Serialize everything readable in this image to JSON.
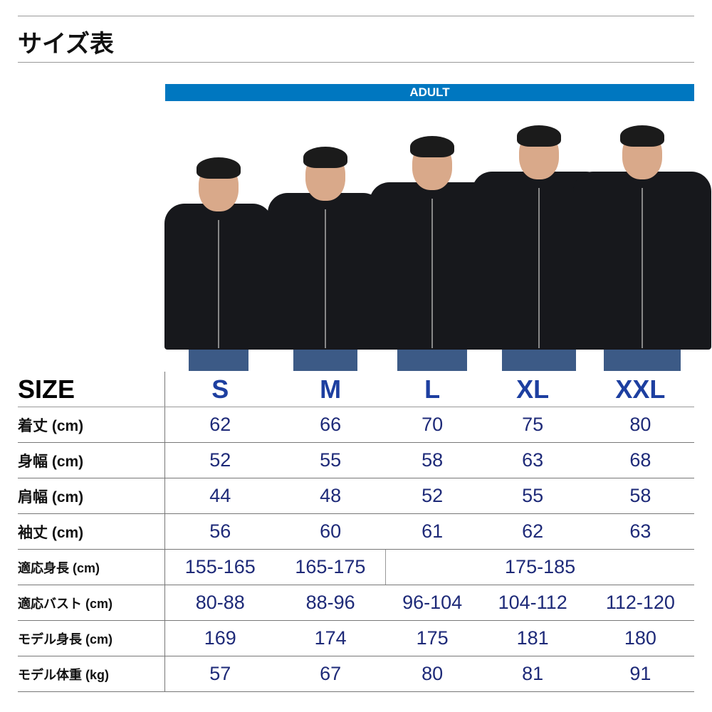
{
  "title": "サイズ表",
  "banner": "ADULT",
  "colors": {
    "banner": "#0077c0",
    "values": "#1e2a78",
    "size_headers": "#1d3fa0"
  },
  "table": {
    "size_label": "SIZE",
    "sizes": [
      "S",
      "M",
      "L",
      "XL",
      "XXL"
    ],
    "rows": [
      {
        "label": "着丈 (cm)",
        "values": [
          "62",
          "66",
          "70",
          "75",
          "80"
        ]
      },
      {
        "label": "身幅 (cm)",
        "values": [
          "52",
          "55",
          "58",
          "63",
          "68"
        ]
      },
      {
        "label": "肩幅 (cm)",
        "values": [
          "44",
          "48",
          "52",
          "55",
          "58"
        ]
      },
      {
        "label": "袖丈 (cm)",
        "values": [
          "56",
          "60",
          "61",
          "62",
          "63"
        ]
      }
    ],
    "height_row": {
      "label": "適応身長 (cm)",
      "values": [
        "155-165",
        "165-175",
        "175-185"
      ]
    },
    "rows2": [
      {
        "label": "適応バスト (cm)",
        "values": [
          "80-88",
          "88-96",
          "96-104",
          "104-112",
          "112-120"
        ]
      },
      {
        "label": "モデル身長 (cm)",
        "values": [
          "169",
          "174",
          "175",
          "181",
          "180"
        ]
      },
      {
        "label": "モデル体重 (kg)",
        "values": [
          "57",
          "67",
          "80",
          "81",
          "91"
        ]
      }
    ]
  }
}
